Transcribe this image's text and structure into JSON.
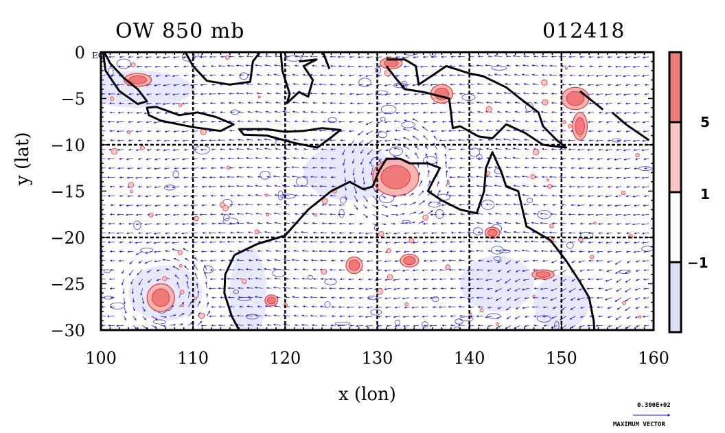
{
  "title_left": "OW 850 mb",
  "title_right": "012418",
  "x_label": "x (lon)",
  "y_label": "y (lat)",
  "eq_label": "EQ",
  "x_ticks": [
    "100",
    "110",
    "120",
    "130",
    "140",
    "150",
    "160"
  ],
  "y_ticks": [
    "0",
    "−5",
    "−10",
    "−15",
    "−20",
    "−25",
    "−30"
  ],
  "colorbar": {
    "labels": [
      "5",
      "1",
      "−1"
    ],
    "colors": [
      "#f07a7a",
      "#f9c6c6",
      "#ffffff",
      "#dde0f5"
    ]
  },
  "vector_key": {
    "value": "0.300E+02",
    "label": "MAXIMUM VECTOR"
  },
  "chart_data": {
    "type": "map",
    "xlim": [
      100,
      160
    ],
    "ylim": [
      -30,
      0
    ],
    "grid_lon": [
      110,
      120,
      130,
      140,
      150
    ],
    "grid_lat": [
      -10,
      -20
    ],
    "colors": {
      "vectors": "#1a1aff",
      "positive": "#e23a3a",
      "negative": "#3a3ad8",
      "coast": "#000000"
    }
  }
}
